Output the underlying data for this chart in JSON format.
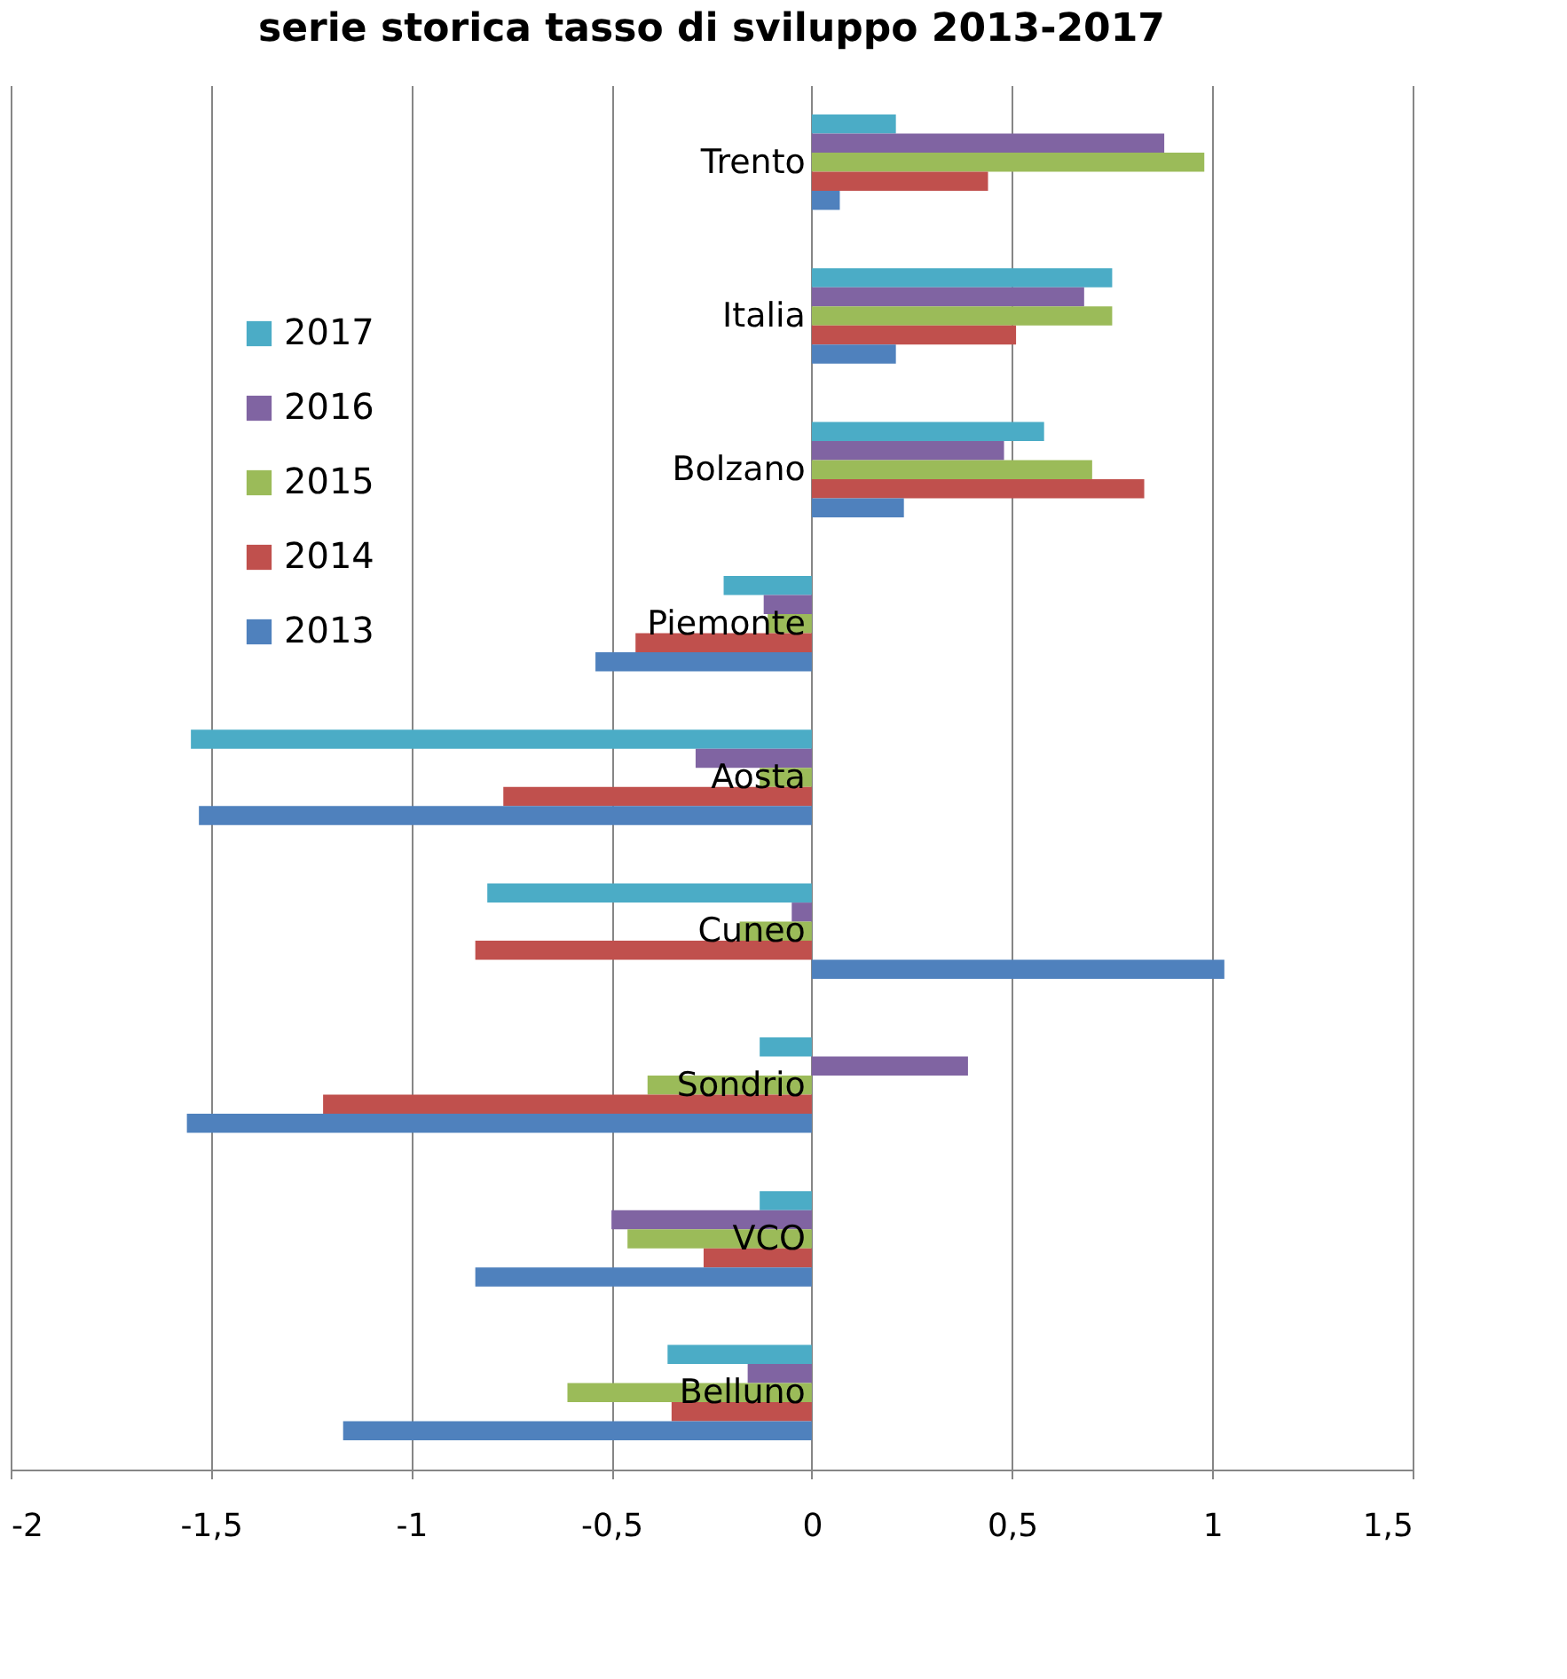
{
  "chart_data": {
    "type": "bar",
    "orientation": "horizontal",
    "title": "serie storica tasso di sviluppo 2013-2017",
    "categories": [
      "Trento",
      "Italia",
      "Bolzano",
      "Piemonte",
      "Aosta",
      "Cuneo",
      "Sondrio",
      "VCO",
      "Belluno"
    ],
    "series": [
      {
        "name": "2017",
        "color": "#4bacc6",
        "values": [
          0.21,
          0.75,
          0.58,
          -0.22,
          -1.55,
          -0.81,
          -0.13,
          -0.13,
          -0.36
        ]
      },
      {
        "name": "2016",
        "color": "#8064a2",
        "values": [
          0.88,
          0.68,
          0.48,
          -0.12,
          -0.29,
          -0.05,
          0.39,
          -0.5,
          -0.16
        ]
      },
      {
        "name": "2015",
        "color": "#9bbb59",
        "values": [
          0.98,
          0.75,
          0.7,
          -0.11,
          -0.13,
          -0.18,
          -0.41,
          -0.46,
          -0.61
        ]
      },
      {
        "name": "2014",
        "color": "#c0504d",
        "values": [
          0.44,
          0.51,
          0.83,
          -0.44,
          -0.77,
          -0.84,
          -1.22,
          -0.27,
          -0.35
        ]
      },
      {
        "name": "2013",
        "color": "#4f81bd",
        "values": [
          0.07,
          0.21,
          0.23,
          -0.54,
          -1.53,
          1.03,
          -1.56,
          -0.84,
          -1.17
        ]
      }
    ],
    "xlim": [
      -2,
      1.5
    ],
    "xticks": [
      {
        "value": -2,
        "label": "-2"
      },
      {
        "value": -1.5,
        "label": "-1,5"
      },
      {
        "value": -1,
        "label": "-1"
      },
      {
        "value": -0.5,
        "label": "-0,5"
      },
      {
        "value": 0,
        "label": "0"
      },
      {
        "value": 0.5,
        "label": "0,5"
      },
      {
        "value": 1,
        "label": "1"
      },
      {
        "value": 1.5,
        "label": "1,5"
      }
    ],
    "grid": "x",
    "legend": "top left"
  }
}
